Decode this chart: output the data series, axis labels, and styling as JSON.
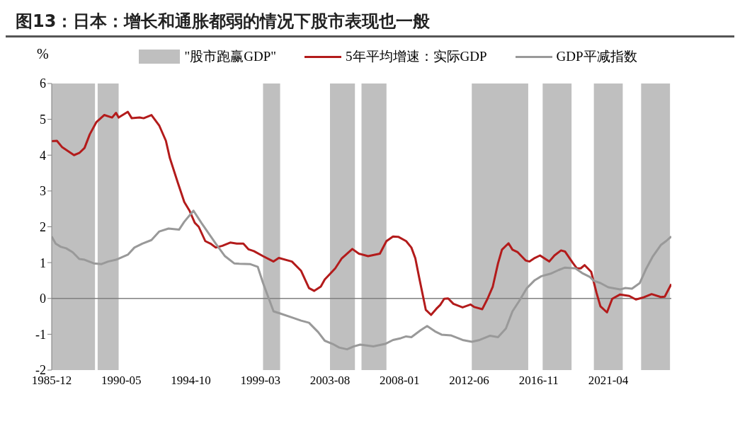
{
  "chart_data": {
    "type": "line",
    "title": "图13：日本：增长和通胀都弱的情况下股市表现也一般",
    "ylabel": "%",
    "legend": "top",
    "grid": false,
    "marker": "none",
    "line_style": "solid",
    "xlim": [
      "1985-12",
      "2025-04"
    ],
    "xticks": [
      "1985-12",
      "1990-05",
      "1994-10",
      "1999-03",
      "2003-08",
      "2008-01",
      "2012-06",
      "2016-11",
      "2021-04"
    ],
    "ylim": [
      -2,
      6
    ],
    "yticks": [
      -2,
      -1,
      0,
      1,
      2,
      3,
      4,
      5,
      6
    ],
    "ref_lines": [
      {
        "axis": "y",
        "value": 0,
        "color": "#808080"
      }
    ],
    "bands": [
      {
        "axis": "x",
        "from": "1985-12",
        "to": "1988-09",
        "label": "\"股市跑赢GDP\"",
        "color": "#bfbfbf"
      },
      {
        "axis": "x",
        "from": "1988-11",
        "to": "1990-03",
        "color": "#bfbfbf"
      },
      {
        "axis": "x",
        "from": "1999-05",
        "to": "2000-06",
        "color": "#bfbfbf"
      },
      {
        "axis": "x",
        "from": "2003-08",
        "to": "2005-03",
        "color": "#bfbfbf"
      },
      {
        "axis": "x",
        "from": "2005-08",
        "to": "2007-03",
        "color": "#bfbfbf"
      },
      {
        "axis": "x",
        "from": "2012-08",
        "to": "2016-03",
        "color": "#bfbfbf"
      },
      {
        "axis": "x",
        "from": "2017-02",
        "to": "2018-12",
        "color": "#bfbfbf"
      },
      {
        "axis": "x",
        "from": "2020-05",
        "to": "2022-03",
        "color": "#bfbfbf"
      },
      {
        "axis": "x",
        "from": "2023-05",
        "to": "2025-03",
        "color": "#bfbfbf"
      }
    ],
    "series": [
      {
        "name": "5年平均增速：实际GDP",
        "color": "#b31b1b",
        "x": [
          "1985-12",
          "1986-04",
          "1986-08",
          "1987-01",
          "1987-05",
          "1987-09",
          "1988-01",
          "1988-05",
          "1988-10",
          "1989-04",
          "1989-10",
          "1990-01",
          "1990-03",
          "1990-10",
          "1991-01",
          "1991-07",
          "1991-10",
          "1992-04",
          "1992-10",
          "1993-03",
          "1993-06",
          "1993-12",
          "1994-05",
          "1994-09",
          "1995-01",
          "1995-04",
          "1995-09",
          "1996-01",
          "1996-05",
          "1996-10",
          "1997-04",
          "1997-09",
          "1998-02",
          "1998-06",
          "1998-10",
          "1999-05",
          "2000-01",
          "2000-05",
          "2001-03",
          "2001-10",
          "2002-04",
          "2002-08",
          "2003-01",
          "2003-04",
          "2003-12",
          "2004-05",
          "2005-01",
          "2005-06",
          "2006-01",
          "2006-10",
          "2007-03",
          "2007-08",
          "2007-12",
          "2008-06",
          "2008-10",
          "2009-01",
          "2009-04",
          "2009-09",
          "2010-01",
          "2010-05",
          "2010-08",
          "2010-11",
          "2011-02",
          "2011-06",
          "2012-01",
          "2012-07",
          "2012-10",
          "2013-04",
          "2013-08",
          "2013-12",
          "2014-04",
          "2014-07",
          "2014-12",
          "2015-03",
          "2015-07",
          "2016-01",
          "2016-04",
          "2016-08",
          "2016-12",
          "2017-07",
          "2017-11",
          "2018-04",
          "2018-07",
          "2019-01",
          "2019-04",
          "2019-07",
          "2019-10",
          "2020-03",
          "2020-07",
          "2020-10",
          "2021-03",
          "2021-07",
          "2022-01",
          "2022-08",
          "2023-01",
          "2023-07",
          "2024-01",
          "2024-08",
          "2024-11",
          "2025-04"
        ],
        "values": [
          4.39,
          4.4,
          4.22,
          4.1,
          4.0,
          4.06,
          4.2,
          4.58,
          4.92,
          5.12,
          5.05,
          5.18,
          5.05,
          5.21,
          5.03,
          5.05,
          5.03,
          5.12,
          4.82,
          4.4,
          3.92,
          3.24,
          2.69,
          2.45,
          2.11,
          2.0,
          1.6,
          1.53,
          1.42,
          1.47,
          1.56,
          1.53,
          1.53,
          1.37,
          1.32,
          1.18,
          1.03,
          1.13,
          1.03,
          0.77,
          0.29,
          0.21,
          0.33,
          0.53,
          0.84,
          1.12,
          1.38,
          1.25,
          1.18,
          1.25,
          1.6,
          1.73,
          1.72,
          1.6,
          1.42,
          1.12,
          0.57,
          -0.32,
          -0.46,
          -0.29,
          -0.18,
          -0.01,
          0.0,
          -0.15,
          -0.25,
          -0.17,
          -0.24,
          -0.3,
          -0.01,
          0.33,
          0.98,
          1.36,
          1.54,
          1.36,
          1.29,
          1.06,
          1.03,
          1.13,
          1.2,
          1.03,
          1.2,
          1.34,
          1.31,
          0.99,
          0.84,
          0.84,
          0.93,
          0.74,
          0.16,
          -0.22,
          -0.39,
          -0.01,
          0.11,
          0.07,
          -0.03,
          0.03,
          0.12,
          0.04,
          0.05,
          0.4
        ]
      },
      {
        "name": "GDP平减指数",
        "color": "#999999",
        "x": [
          "1985-12",
          "1986-03",
          "1986-07",
          "1986-11",
          "1987-04",
          "1987-09",
          "1988-01",
          "1988-08",
          "1989-02",
          "1989-07",
          "1990-01",
          "1990-10",
          "1991-03",
          "1991-09",
          "1992-04",
          "1992-10",
          "1993-05",
          "1994-01",
          "1994-05",
          "1994-12",
          "1995-06",
          "1995-10",
          "1996-05",
          "1996-12",
          "1997-07",
          "1997-11",
          "1998-07",
          "1999-01",
          "1999-05",
          "2000-01",
          "2000-06",
          "2001-03",
          "2001-10",
          "2002-04",
          "2002-11",
          "2003-04",
          "2003-10",
          "2004-03",
          "2004-09",
          "2005-02",
          "2005-07",
          "2006-05",
          "2007-02",
          "2007-08",
          "2008-02",
          "2008-06",
          "2008-10",
          "2009-05",
          "2009-10",
          "2010-04",
          "2010-09",
          "2011-04",
          "2012-01",
          "2012-08",
          "2013-02",
          "2013-10",
          "2014-04",
          "2014-10",
          "2015-03",
          "2015-08",
          "2016-02",
          "2016-08",
          "2017-01",
          "2017-08",
          "2018-02",
          "2018-07",
          "2019-03",
          "2019-08",
          "2020-02",
          "2020-05",
          "2020-10",
          "2021-04",
          "2022-01",
          "2022-05",
          "2022-10",
          "2023-04",
          "2023-09",
          "2024-02",
          "2024-08",
          "2024-12",
          "2025-04"
        ],
        "values": [
          1.73,
          1.53,
          1.44,
          1.4,
          1.29,
          1.1,
          1.08,
          0.98,
          0.96,
          1.03,
          1.08,
          1.22,
          1.42,
          1.53,
          1.63,
          1.87,
          1.95,
          1.92,
          2.14,
          2.45,
          2.11,
          1.9,
          1.53,
          1.18,
          0.98,
          0.97,
          0.96,
          0.88,
          0.43,
          -0.36,
          -0.42,
          -0.53,
          -0.62,
          -0.68,
          -0.94,
          -1.18,
          -1.27,
          -1.37,
          -1.42,
          -1.34,
          -1.29,
          -1.34,
          -1.27,
          -1.16,
          -1.11,
          -1.06,
          -1.08,
          -0.89,
          -0.77,
          -0.92,
          -1.01,
          -1.03,
          -1.16,
          -1.21,
          -1.16,
          -1.04,
          -1.08,
          -0.84,
          -0.36,
          -0.08,
          0.29,
          0.51,
          0.62,
          0.69,
          0.79,
          0.86,
          0.84,
          0.71,
          0.6,
          0.49,
          0.43,
          0.31,
          0.25,
          0.29,
          0.27,
          0.43,
          0.84,
          1.18,
          1.49,
          1.6,
          1.73
        ]
      }
    ]
  }
}
